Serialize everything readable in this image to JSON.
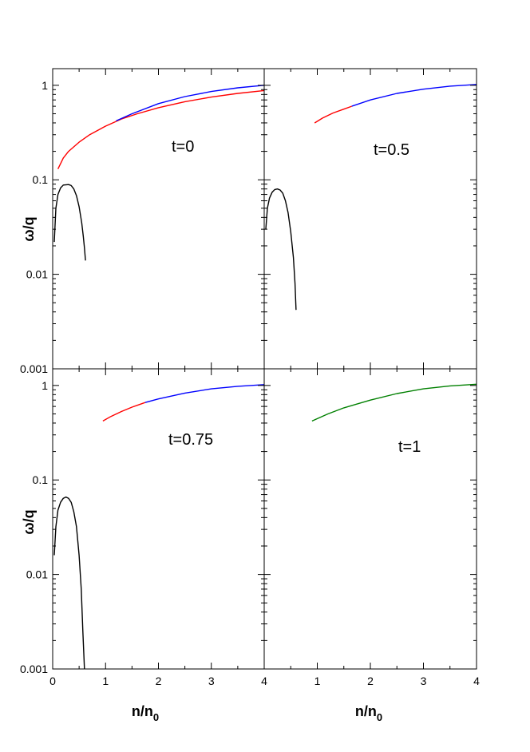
{
  "chart_data": {
    "type": "line",
    "layout": "2x2 panels, shared axes",
    "xlabel": "n/n0",
    "xlabel_main": "n/n",
    "xlabel_sub": "0",
    "ylabel": "ω/q",
    "xlim": [
      0,
      4
    ],
    "ylim": [
      0.001,
      1.5
    ],
    "yscale": "log",
    "grid": false,
    "x_ticks": [
      "0",
      "1",
      "2",
      "3",
      "4"
    ],
    "y_ticks": [
      "0.001",
      "0.01",
      "0.1",
      "1"
    ],
    "colors": {
      "red": "#ff0000",
      "blue": "#0000ff",
      "black": "#000000",
      "green": "#008000"
    },
    "panels": [
      {
        "label": "t=0",
        "series": [
          {
            "color": "red",
            "x": [
              0.1,
              0.2,
              0.3,
              0.5,
              0.7,
              1.0,
              1.3,
              1.6,
              2.0,
              2.5,
              3.0,
              3.5,
              4.0
            ],
            "y": [
              0.13,
              0.17,
              0.2,
              0.25,
              0.3,
              0.37,
              0.44,
              0.5,
              0.58,
              0.67,
              0.75,
              0.82,
              0.88
            ]
          },
          {
            "color": "blue",
            "x": [
              1.2,
              1.5,
              2.0,
              2.5,
              3.0,
              3.5,
              4.0
            ],
            "y": [
              0.42,
              0.5,
              0.64,
              0.76,
              0.86,
              0.94,
              1.0
            ]
          },
          {
            "color": "black",
            "x": [
              0.03,
              0.06,
              0.1,
              0.15,
              0.2,
              0.3,
              0.35,
              0.4,
              0.45,
              0.5,
              0.55,
              0.58,
              0.6,
              0.62
            ],
            "y": [
              0.022,
              0.05,
              0.07,
              0.082,
              0.088,
              0.089,
              0.087,
              0.08,
              0.068,
              0.052,
              0.035,
              0.025,
              0.019,
              0.014
            ]
          }
        ]
      },
      {
        "label": "t=0.5",
        "series": [
          {
            "color": "red",
            "x": [
              0.95,
              1.1,
              1.3,
              1.5,
              1.65
            ],
            "y": [
              0.4,
              0.45,
              0.51,
              0.56,
              0.6
            ]
          },
          {
            "color": "blue",
            "x": [
              1.65,
              2.0,
              2.5,
              3.0,
              3.5,
              4.0
            ],
            "y": [
              0.6,
              0.7,
              0.82,
              0.91,
              0.98,
              1.02
            ]
          },
          {
            "color": "black",
            "x": [
              0.03,
              0.06,
              0.1,
              0.15,
              0.2,
              0.25,
              0.3,
              0.35,
              0.4,
              0.45,
              0.5,
              0.55,
              0.58,
              0.6
            ],
            "y": [
              0.03,
              0.05,
              0.064,
              0.074,
              0.079,
              0.08,
              0.078,
              0.072,
              0.06,
              0.045,
              0.028,
              0.015,
              0.008,
              0.0042
            ]
          }
        ]
      },
      {
        "label": "t=0.75",
        "series": [
          {
            "color": "red",
            "x": [
              0.95,
              1.1,
              1.3,
              1.5,
              1.75
            ],
            "y": [
              0.42,
              0.47,
              0.53,
              0.59,
              0.66
            ]
          },
          {
            "color": "blue",
            "x": [
              1.75,
              2.0,
              2.5,
              3.0,
              3.5,
              4.0
            ],
            "y": [
              0.66,
              0.72,
              0.83,
              0.92,
              0.98,
              1.02
            ]
          },
          {
            "color": "black",
            "x": [
              0.03,
              0.06,
              0.1,
              0.15,
              0.2,
              0.25,
              0.3,
              0.35,
              0.4,
              0.45,
              0.5,
              0.54,
              0.57,
              0.6
            ],
            "y": [
              0.016,
              0.032,
              0.048,
              0.058,
              0.064,
              0.066,
              0.064,
              0.058,
              0.046,
              0.032,
              0.016,
              0.007,
              0.0025,
              0.001
            ]
          }
        ]
      },
      {
        "label": "t=1",
        "series": [
          {
            "color": "green",
            "x": [
              0.9,
              1.2,
              1.5,
              2.0,
              2.5,
              3.0,
              3.5,
              4.0
            ],
            "y": [
              0.42,
              0.5,
              0.58,
              0.7,
              0.82,
              0.92,
              0.99,
              1.03
            ]
          }
        ]
      }
    ]
  }
}
